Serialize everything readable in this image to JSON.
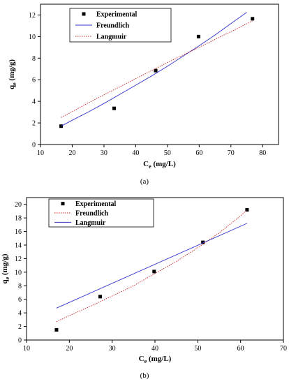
{
  "chart_data": [
    {
      "type": "scatter",
      "panel_label": "(a)",
      "xlabel_main": "C",
      "xlabel_sub": "e",
      "xlabel_unit": " (mg/L)",
      "ylabel_main": "q",
      "ylabel_sub": "e",
      "ylabel_unit": " (mg/g)",
      "xlim": [
        10,
        85
      ],
      "ylim": [
        0,
        13
      ],
      "xticks": [
        10,
        20,
        30,
        40,
        50,
        60,
        70,
        80
      ],
      "yticks": [
        0,
        2,
        4,
        6,
        8,
        10,
        12
      ],
      "legend_placement": "top-left",
      "legend": [
        "Experimental",
        "Freundlich",
        "Langmuir"
      ],
      "series": [
        {
          "name": "Experimental",
          "style": "marker",
          "color": "#000000",
          "x": [
            16.5,
            33.2,
            46.3,
            59.8,
            76.8
          ],
          "y": [
            1.7,
            3.35,
            6.85,
            10.0,
            11.65
          ]
        },
        {
          "name": "Freundlich",
          "style": "solid",
          "color": "#3333cc",
          "x": [
            16.5,
            20,
            25,
            30,
            35,
            40,
            45,
            50,
            55,
            60,
            65,
            70,
            75
          ],
          "y": [
            1.7,
            2.25,
            3.0,
            3.8,
            4.65,
            5.5,
            6.35,
            7.25,
            8.2,
            9.15,
            10.15,
            11.2,
            12.25
          ]
        },
        {
          "name": "Langmuir",
          "style": "dotted",
          "color": "#cc2222",
          "x": [
            16.5,
            20,
            25,
            30,
            35,
            40,
            45,
            50,
            55,
            60,
            65,
            70,
            76.8
          ],
          "y": [
            2.5,
            3.05,
            3.85,
            4.6,
            5.35,
            6.1,
            6.85,
            7.6,
            8.3,
            9.0,
            9.75,
            10.45,
            11.45
          ]
        }
      ]
    },
    {
      "type": "scatter",
      "panel_label": "(b)",
      "xlabel_main": "C",
      "xlabel_sub": "e",
      "xlabel_unit": " (mg/L)",
      "ylabel_main": "q",
      "ylabel_sub": "e",
      "ylabel_unit": " (mg/g)",
      "xlim": [
        10,
        70
      ],
      "ylim": [
        0,
        21
      ],
      "xticks": [
        10,
        20,
        30,
        40,
        50,
        60,
        70
      ],
      "yticks": [
        0,
        2,
        4,
        6,
        8,
        10,
        12,
        14,
        16,
        18,
        20
      ],
      "legend_placement": "top-left",
      "legend": [
        "Experimental",
        "Freundlich",
        "Langmuir"
      ],
      "series": [
        {
          "name": "Experimental",
          "style": "marker",
          "color": "#000000",
          "x": [
            17.0,
            27.2,
            39.8,
            51.2,
            61.5
          ],
          "y": [
            1.5,
            6.4,
            10.1,
            14.4,
            19.2
          ]
        },
        {
          "name": "Freundlich",
          "style": "dotted",
          "color": "#cc2222",
          "x": [
            17,
            20,
            25,
            30,
            35,
            40,
            45,
            50,
            55,
            60,
            61.5
          ],
          "y": [
            2.7,
            3.6,
            5.0,
            6.5,
            8.0,
            9.8,
            11.6,
            13.6,
            15.8,
            18.3,
            19.2
          ]
        },
        {
          "name": "Langmuir",
          "style": "solid",
          "color": "#3333cc",
          "x": [
            17,
            61.5
          ],
          "y": [
            4.7,
            17.2
          ]
        }
      ]
    }
  ]
}
